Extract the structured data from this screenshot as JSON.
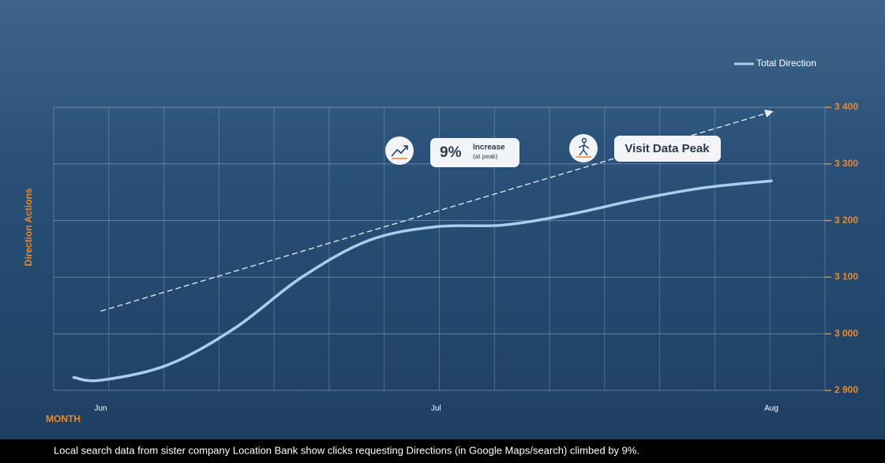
{
  "chart_data": {
    "type": "line",
    "y_axis_label": "Direction Actions",
    "x_axis_label": "MONTH",
    "x": [
      -0.08,
      0,
      0.2,
      0.4,
      0.6,
      0.8,
      1.0,
      1.2,
      1.4,
      1.6,
      1.8,
      2.0
    ],
    "xlim": [
      -0.14,
      2.16
    ],
    "xticks": [
      {
        "value": 0,
        "label": "Jun"
      },
      {
        "value": 1,
        "label": "Jul"
      },
      {
        "value": 2,
        "label": "Aug"
      }
    ],
    "ylim": [
      2900,
      3400
    ],
    "yticks": [
      {
        "value": 2900,
        "label": "2 900"
      },
      {
        "value": 3000,
        "label": "3 000"
      },
      {
        "value": 3100,
        "label": "3 100"
      },
      {
        "value": 3200,
        "label": "3 200"
      },
      {
        "value": 3300,
        "label": "3 300"
      },
      {
        "value": 3400,
        "label": "3 400"
      }
    ],
    "grid": true,
    "legend_position": "top-right",
    "series": [
      {
        "name": "Total Direction",
        "color": "#a9cdeb",
        "values": [
          2923,
          2918,
          2945,
          3010,
          3100,
          3165,
          3189,
          3192,
          3211,
          3237,
          3258,
          3270
        ]
      }
    ],
    "trend_line": {
      "x": [
        0,
        2
      ],
      "values": [
        3040,
        3392
      ],
      "color": "#e8eef5"
    },
    "annotations": {
      "increase_value": "9%",
      "increase_text": "Increase",
      "increase_note": "(at peak)",
      "peak_text": "Visit Data Peak"
    },
    "footer": "Local search data from sister company Location Bank show clicks requesting Directions (in Google Maps/search) climbed by 9%."
  }
}
